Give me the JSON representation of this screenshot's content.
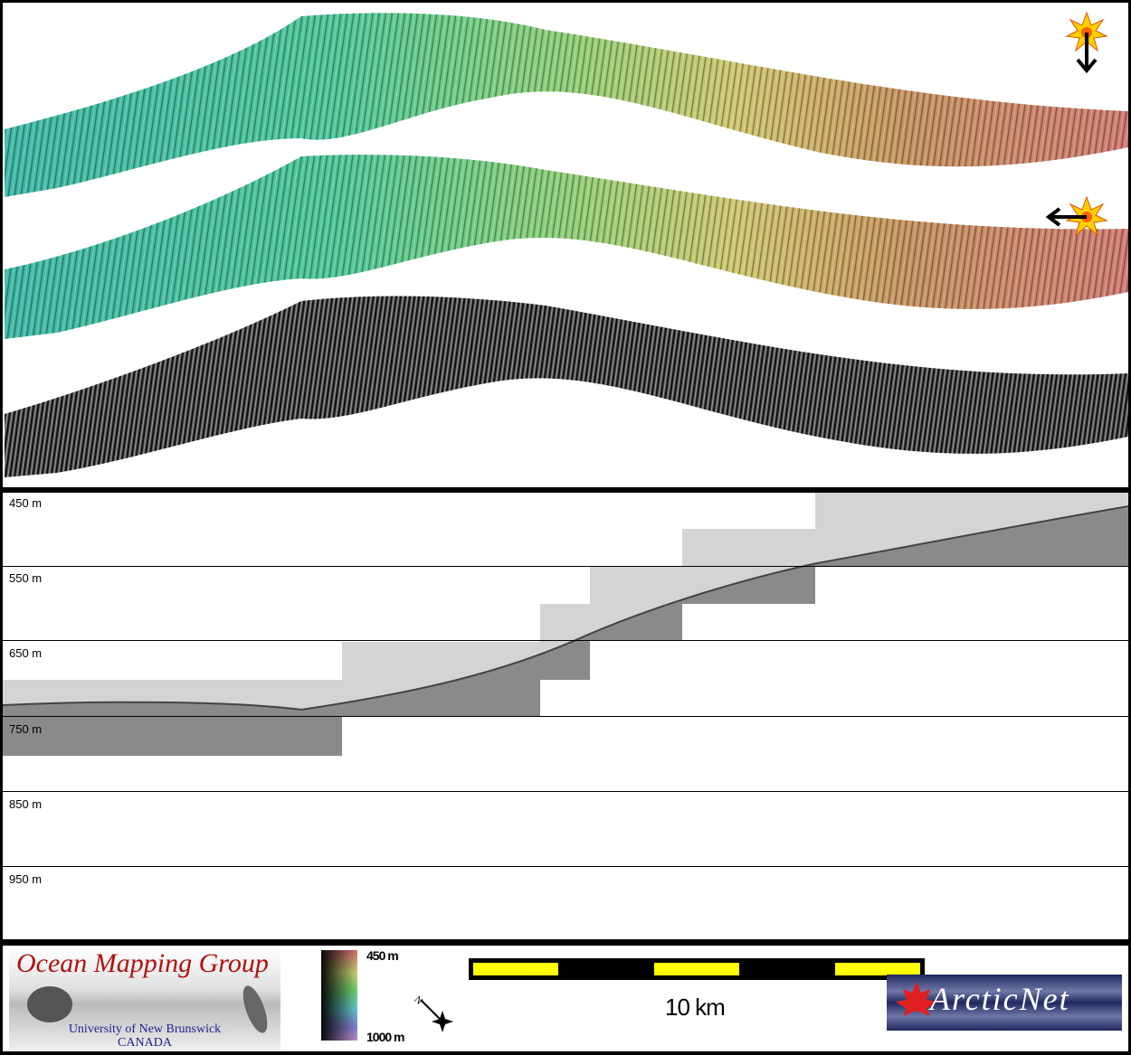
{
  "maps": {
    "sun_icons": [
      "sun-illumination-from-above",
      "sun-illumination-from-side"
    ],
    "ramp_colors": [
      "#3fb8a8",
      "#5cc890",
      "#a8d870",
      "#d8c070",
      "#c89060",
      "#d07870"
    ]
  },
  "profile": {
    "depth_labels": [
      "450 m",
      "550 m",
      "650 m",
      "750 m",
      "850 m",
      "950 m"
    ]
  },
  "legend": {
    "logo_omg": {
      "title": "Ocean Mapping Group",
      "line1": "University of New Brunswick",
      "line2": "CANADA"
    },
    "colorbar": {
      "top_label": "450 m",
      "bottom_label": "1000 m"
    },
    "north_arrow": "N",
    "scale_bar": {
      "label": "10 km",
      "color": "#ffff00"
    },
    "logo_arcticnet": {
      "text": "ArcticNet"
    }
  }
}
